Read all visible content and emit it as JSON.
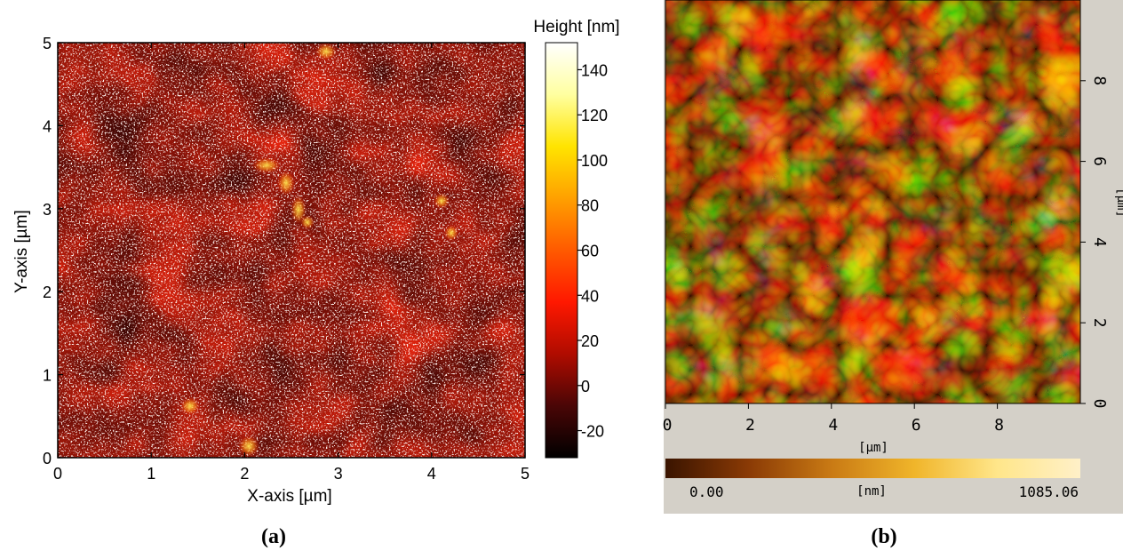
{
  "panel_a": {
    "label": "(a)",
    "xlabel": "X-axis [µm]",
    "ylabel": "Y-axis [µm]",
    "colorbar_title": "Height [nm]"
  },
  "panel_b": {
    "label": "(b)",
    "xlabel": "[µm]",
    "ylabel": "[µm]",
    "colorbar_unit": "[nm]",
    "colorbar_min_label": "0.00",
    "colorbar_max_label": "1085.06"
  },
  "chart_data": [
    {
      "type": "heatmap",
      "title": "",
      "xlabel": "X-axis [µm]",
      "ylabel": "Y-axis [µm]",
      "xlim": [
        0,
        5
      ],
      "ylim": [
        0,
        5
      ],
      "xticks": [
        0,
        1,
        2,
        3,
        4,
        5
      ],
      "yticks": [
        0,
        1,
        2,
        3,
        4,
        5
      ],
      "colorbar": {
        "title": "Height [nm]",
        "range": [
          -32,
          152
        ],
        "ticks": [
          -20,
          0,
          20,
          40,
          60,
          80,
          100,
          120,
          140
        ],
        "colormap": [
          "#000000",
          "#4a0606",
          "#b00c00",
          "#ff1800",
          "#ff5a00",
          "#ffa000",
          "#ffe400",
          "#ffffa0",
          "#ffffff"
        ]
      }
    },
    {
      "type": "heatmap",
      "title": "",
      "xlabel": "[µm]",
      "ylabel": "[µm]",
      "xlim": [
        0,
        10
      ],
      "ylim": [
        0,
        10
      ],
      "xticks": [
        0,
        2,
        4,
        6,
        8
      ],
      "yticks": [
        0,
        2,
        4,
        6,
        8
      ],
      "colorbar": {
        "unit": "[nm]",
        "range": [
          0.0,
          1085.06
        ],
        "colormap": [
          "#3a1400",
          "#8a3a05",
          "#c97a14",
          "#f0b52a",
          "#ffe68a",
          "#fff0c8"
        ]
      }
    }
  ]
}
